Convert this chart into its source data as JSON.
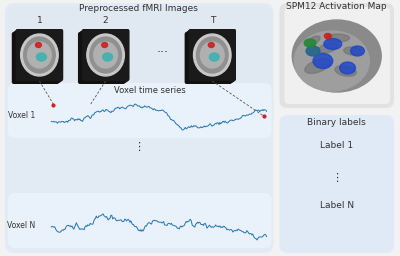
{
  "title_fmri": "Preprocessed fMRI Images",
  "title_spm": "SPM12 Activation Map",
  "label_binary": "Binary labels",
  "label_voxel_ts": "Voxel time series",
  "voxel1_label": "Voxel 1",
  "voxelN_label": "Voxel N",
  "label1": "Label 1",
  "labelN": "Label N",
  "bg_color": "#f2f2f2",
  "panel_left_color": "#dce8f5",
  "panel_spm_color": "#e0e0e0",
  "panel_binary_color": "#d8e8f8",
  "box_fmri_bg": "#e8e8e8",
  "box_ts_color": "#eaf2fb",
  "line_color": "#2575b0",
  "text_color": "#333333",
  "dashed_color": "#555555",
  "font_title": 6.5,
  "font_label": 6.0,
  "font_small": 5.5
}
